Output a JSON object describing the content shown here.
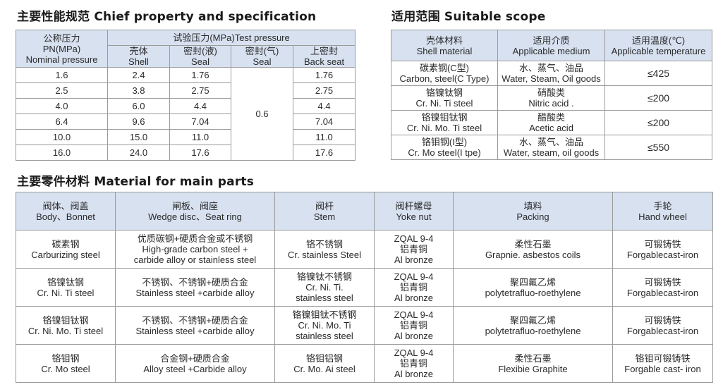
{
  "spec": {
    "title": "主要性能规范 Chief property and specification",
    "nominal_header": [
      "公称压力",
      "PN(MPa)",
      "Nominal pressure"
    ],
    "test_header": "试验压力(MPa)Test pressure",
    "sub_headers": [
      [
        "壳体",
        "Shell"
      ],
      [
        "密封(液)",
        "Seal"
      ],
      [
        "密封(气)",
        "Seal"
      ],
      [
        "上密封",
        "Back seat"
      ]
    ],
    "gas_seal_value": "0.6",
    "rows": [
      [
        "1.6",
        "2.4",
        "1.76",
        "1.76"
      ],
      [
        "2.5",
        "3.8",
        "2.75",
        "2.75"
      ],
      [
        "4.0",
        "6.0",
        "4.4",
        "4.4"
      ],
      [
        "6.4",
        "9.6",
        "7.04",
        "7.04"
      ],
      [
        "10.0",
        "15.0",
        "11.0",
        "11.0"
      ],
      [
        "16.0",
        "24.0",
        "17.6",
        "17.6"
      ]
    ]
  },
  "scope": {
    "title": "适用范围 Suitable scope",
    "headers": [
      [
        "壳体材料",
        "Shell material"
      ],
      [
        "适用介质",
        "Applicable medium"
      ],
      [
        "适用温度(℃)",
        "Applicable temperature"
      ]
    ],
    "rows": [
      [
        [
          "碳素钢(C型)",
          "Carbon, steel(C Type)"
        ],
        [
          "水、蒸气、油品",
          "Water, Steam, Oil goods"
        ],
        "≤425"
      ],
      [
        [
          "铬镍钛钢",
          "Cr. Ni. Ti steel"
        ],
        [
          "硝酸类",
          "Nitric acid ."
        ],
        "≤200"
      ],
      [
        [
          "铬镍钼钛钢",
          "Cr. Ni. Mo. Ti steel"
        ],
        [
          "醋酸类",
          "Acetic acid"
        ],
        "≤200"
      ],
      [
        [
          "铬钼钢(I型)",
          "Cr. Mo steel(I tpe)"
        ],
        [
          "水、蒸气、油品",
          "Water, steam, oil goods"
        ],
        "≤550"
      ]
    ]
  },
  "materials": {
    "title": "主要零件材料 Material for main parts",
    "headers": [
      [
        "阀体、阀盖",
        "Body、Bonnet"
      ],
      [
        "闸板、阀座",
        "Wedge disc、Seat ring"
      ],
      [
        "阀杆",
        "Stem"
      ],
      [
        "阀杆螺母",
        "Yoke nut"
      ],
      [
        "填料",
        "Packing"
      ],
      [
        "手轮",
        "Hand wheel"
      ]
    ],
    "rows": [
      [
        [
          "碳素钢",
          "Carburizing steel"
        ],
        [
          "优质碳钢+硬质合金或不锈钢",
          "High-grade carbon steel +",
          "carbide alloy or stainless steel"
        ],
        [
          "铬不锈钢",
          "Cr. stainless Steel"
        ],
        [
          "ZQAL 9-4",
          "铝青铜",
          "Al bronze"
        ],
        [
          "柔性石墨",
          "Grapnie. asbestos coils"
        ],
        [
          "可锻铸铁",
          "Forgablecast-iron"
        ]
      ],
      [
        [
          "铬镍钛钢",
          "Cr. Ni. Ti steel"
        ],
        [
          "不锈钢、不锈钢+硬质合金",
          "Stainless steel +carbide alloy"
        ],
        [
          "铬镍钛不锈钢",
          "Cr. Ni. Ti.",
          "stainless steel"
        ],
        [
          "ZQAL 9-4",
          "铝青铜",
          "Al bronze"
        ],
        [
          "聚四氟乙烯",
          "polytetrafluo-roethylene"
        ],
        [
          "可锻铸铁",
          "Forgablecast-iron"
        ]
      ],
      [
        [
          "铬镍钼钛钢",
          "Cr. Ni. Mo. Ti steel"
        ],
        [
          "不锈钢、不锈钢+硬质合金",
          "Stainless steel +carbide alloy"
        ],
        [
          "铬镍钼钛不锈钢",
          "Cr. Ni. Mo. Ti",
          "stainless steel"
        ],
        [
          "ZQAL 9-4",
          "铝青铜",
          "Al bronze"
        ],
        [
          "聚四氟乙烯",
          "polytetrafluo-roethylene"
        ],
        [
          "可锻铸铁",
          "Forgablecast-iron"
        ]
      ],
      [
        [
          "铬钼钢",
          "Cr. Mo steel"
        ],
        [
          "合金钢+硬质合金",
          "Alloy steel +Carbide alloy"
        ],
        [
          "铬钼铝钢",
          "Cr. Mo. Ai steel"
        ],
        [
          "ZQAL 9-4",
          "铝青铜",
          "Al bronze"
        ],
        [
          "柔性石墨",
          "Flexibie Graphite"
        ],
        [
          "铬钼可锻铸铁",
          "Forgable cast- iron"
        ]
      ]
    ]
  },
  "colors": {
    "header_bg": "#d7e1f0",
    "border": "#9a9a9a"
  }
}
